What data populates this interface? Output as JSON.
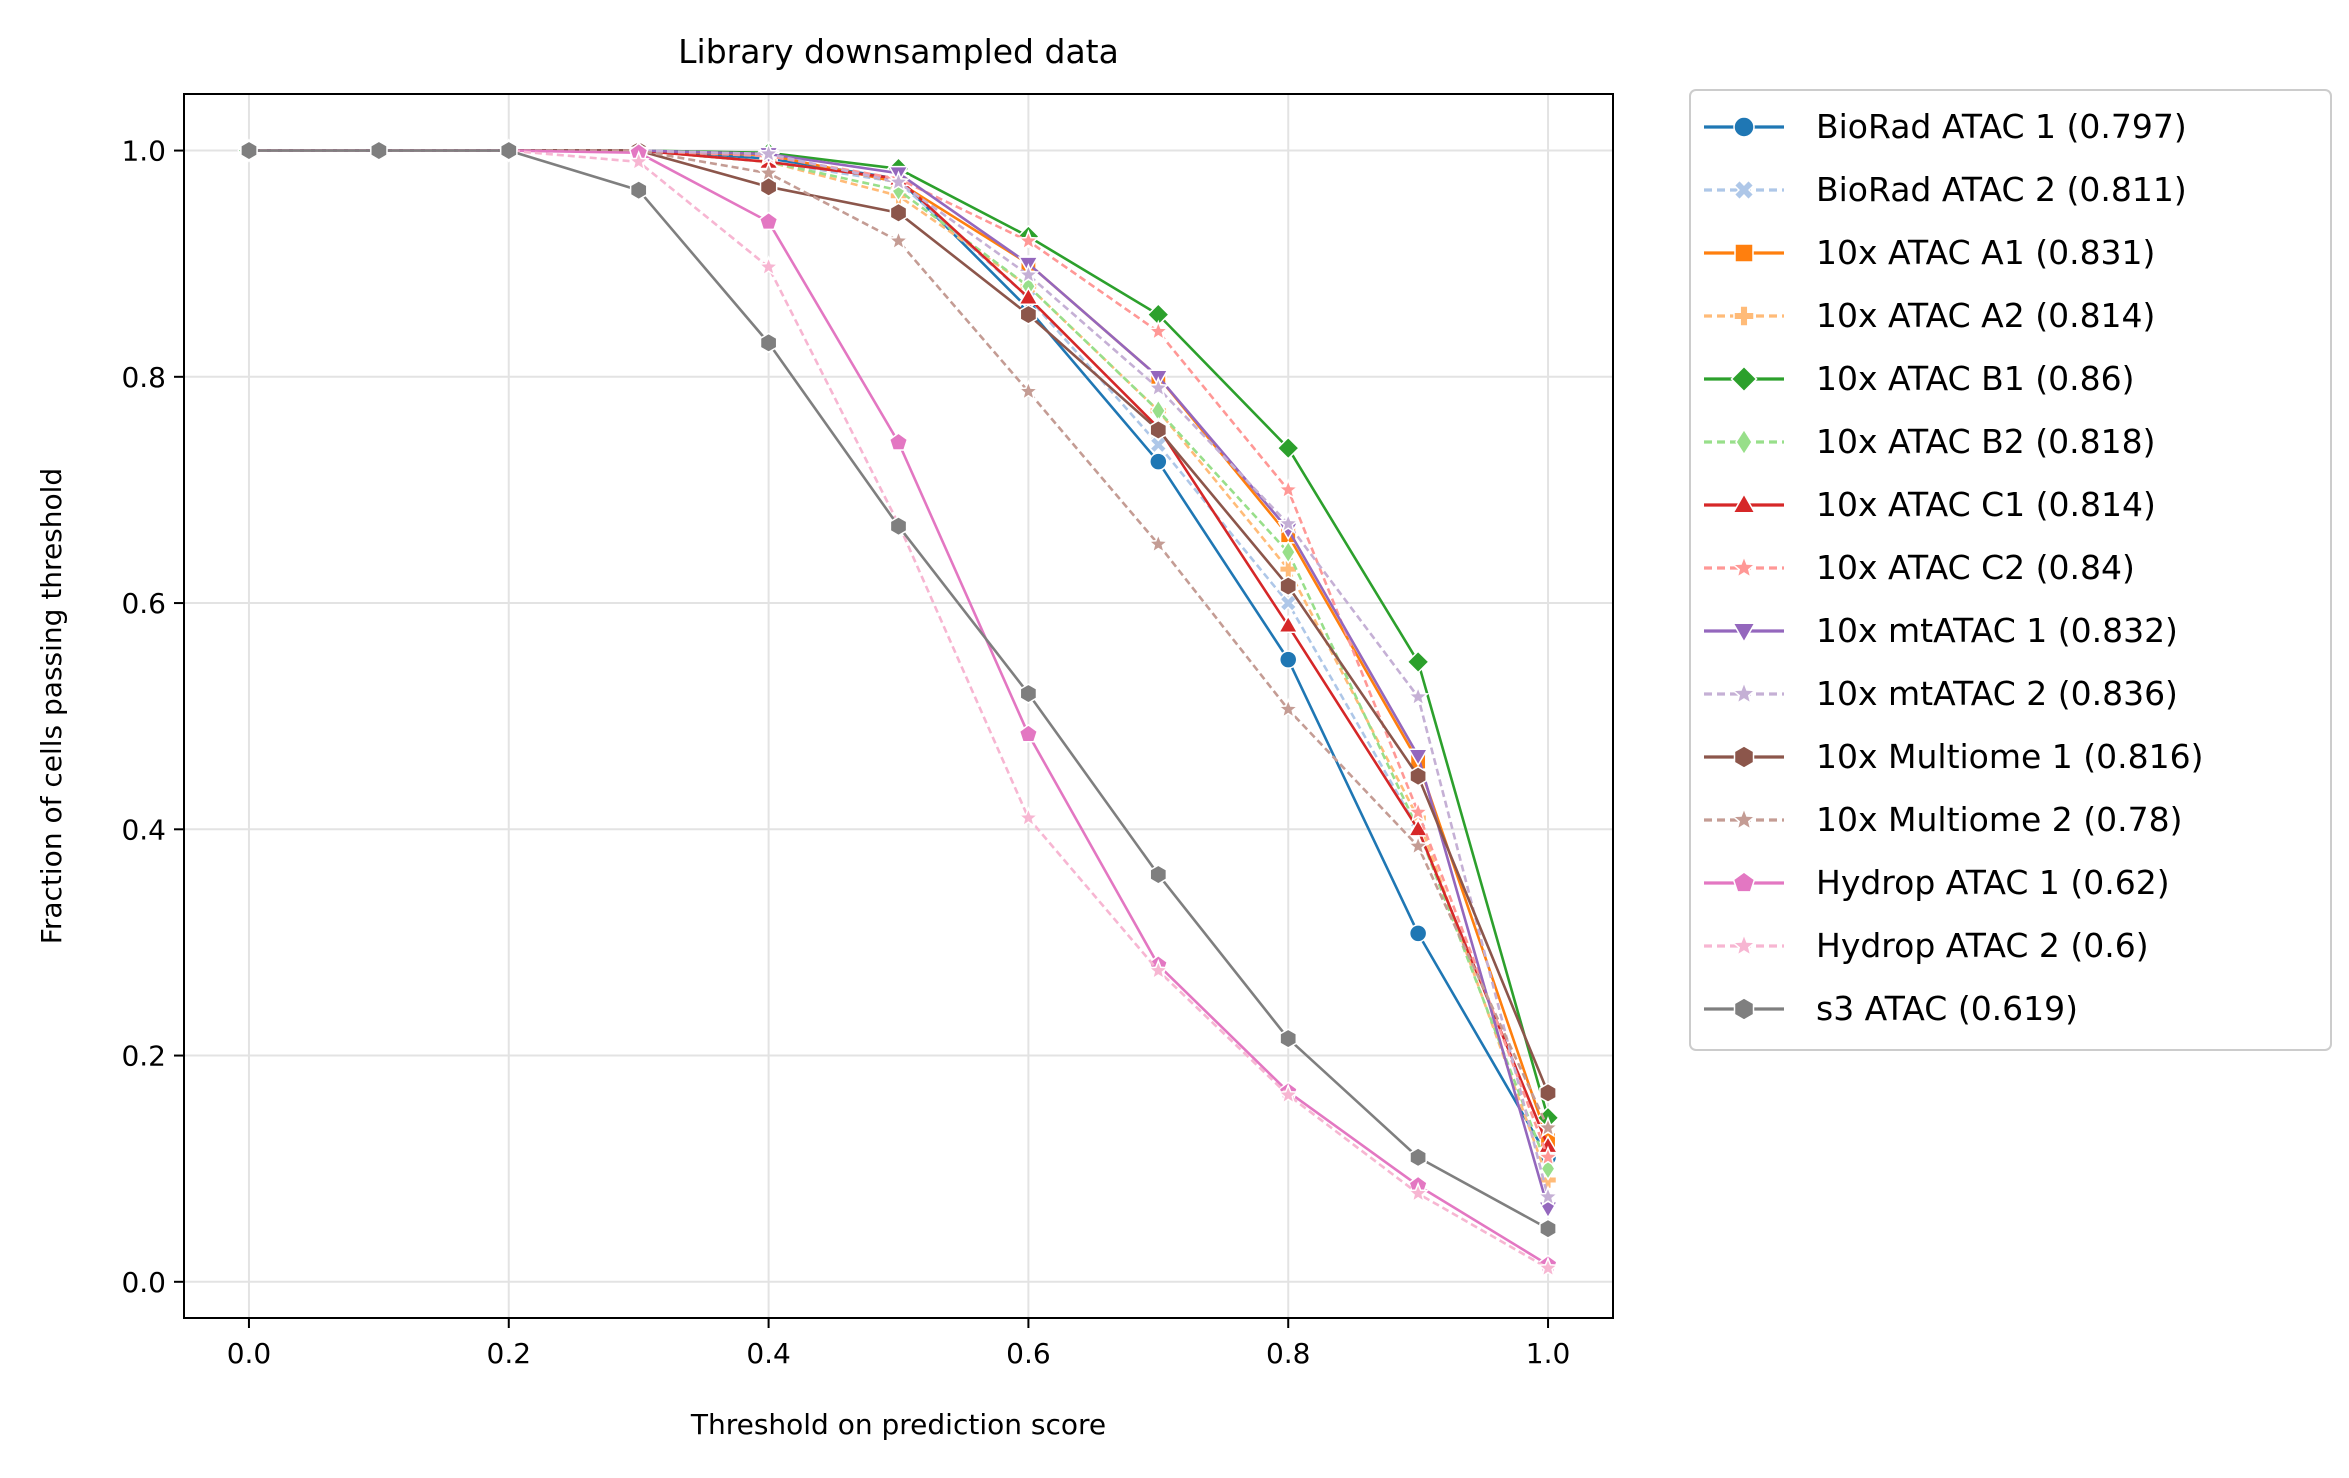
{
  "chart_data": {
    "type": "line",
    "title": "Library downsampled data",
    "xlabel": "Threshold on prediction score",
    "ylabel": "Fraction of cells passing threshold",
    "xlim": [
      -0.05,
      1.05
    ],
    "ylim": [
      -0.032,
      1.05
    ],
    "x_ticks": [
      "0.0",
      "0.2",
      "0.4",
      "0.6",
      "0.8",
      "1.0"
    ],
    "y_ticks": [
      "0.0",
      "0.2",
      "0.4",
      "0.6",
      "0.8",
      "1.0"
    ],
    "grid": true,
    "legend_position": "outside-right",
    "x": [
      0.0,
      0.1,
      0.2,
      0.3,
      0.4,
      0.5,
      0.6,
      0.7,
      0.8,
      0.9,
      1.0
    ],
    "series": [
      {
        "name": "BioRad ATAC 1 (0.797)",
        "color": "#1f77b4",
        "dashed": false,
        "marker": "circle",
        "values": [
          1.0,
          1.0,
          1.0,
          1.0,
          0.993,
          0.975,
          0.86,
          0.725,
          0.55,
          0.308,
          0.11
        ]
      },
      {
        "name": "BioRad ATAC 2 (0.811)",
        "color": "#aec7e8",
        "dashed": true,
        "marker": "x",
        "values": [
          1.0,
          1.0,
          1.0,
          1.0,
          0.99,
          0.972,
          0.87,
          0.74,
          0.6,
          0.4,
          0.12
        ]
      },
      {
        "name": "10x ATAC A1 (0.831)",
        "color": "#ff7f0e",
        "dashed": false,
        "marker": "square",
        "values": [
          1.0,
          1.0,
          1.0,
          1.0,
          0.996,
          0.972,
          0.9,
          0.8,
          0.66,
          0.46,
          0.125
        ]
      },
      {
        "name": "10x ATAC A2 (0.814)",
        "color": "#ffbb78",
        "dashed": true,
        "marker": "plus",
        "values": [
          1.0,
          1.0,
          1.0,
          1.0,
          0.99,
          0.96,
          0.88,
          0.77,
          0.63,
          0.41,
          0.09
        ]
      },
      {
        "name": "10x ATAC B1 (0.86)",
        "color": "#2ca02c",
        "dashed": false,
        "marker": "diamond",
        "values": [
          1.0,
          1.0,
          1.0,
          1.0,
          0.998,
          0.984,
          0.924,
          0.855,
          0.737,
          0.548,
          0.145
        ]
      },
      {
        "name": "10x ATAC B2 (0.818)",
        "color": "#98df8a",
        "dashed": true,
        "marker": "thin_diamond",
        "values": [
          1.0,
          1.0,
          1.0,
          1.0,
          0.99,
          0.965,
          0.88,
          0.77,
          0.645,
          0.4,
          0.1
        ]
      },
      {
        "name": "10x ATAC C1 (0.814)",
        "color": "#d62728",
        "dashed": false,
        "marker": "triangle_up",
        "values": [
          1.0,
          1.0,
          1.0,
          1.0,
          0.99,
          0.975,
          0.87,
          0.755,
          0.58,
          0.4,
          0.12
        ]
      },
      {
        "name": "10x ATAC C2 (0.84)",
        "color": "#ff9896",
        "dashed": true,
        "marker": "star",
        "values": [
          1.0,
          1.0,
          1.0,
          1.0,
          0.995,
          0.975,
          0.92,
          0.84,
          0.7,
          0.415,
          0.11
        ]
      },
      {
        "name": "10x mtATAC 1 (0.832)",
        "color": "#9467bd",
        "dashed": false,
        "marker": "triangle_down",
        "values": [
          1.0,
          1.0,
          1.0,
          1.0,
          0.997,
          0.98,
          0.9,
          0.8,
          0.665,
          0.465,
          0.065
        ]
      },
      {
        "name": "10x mtATAC 2 (0.836)",
        "color": "#c5b0d5",
        "dashed": true,
        "marker": "star",
        "values": [
          1.0,
          1.0,
          1.0,
          1.0,
          0.997,
          0.972,
          0.89,
          0.79,
          0.67,
          0.517,
          0.075
        ]
      },
      {
        "name": "10x Multiome 1 (0.816)",
        "color": "#8c564b",
        "dashed": false,
        "marker": "hexagon",
        "values": [
          1.0,
          1.0,
          1.0,
          1.0,
          0.968,
          0.945,
          0.855,
          0.753,
          0.615,
          0.447,
          0.167
        ]
      },
      {
        "name": "10x Multiome 2 (0.78)",
        "color": "#c49c94",
        "dashed": true,
        "marker": "star",
        "values": [
          1.0,
          1.0,
          1.0,
          1.0,
          0.98,
          0.92,
          0.787,
          0.652,
          0.506,
          0.385,
          0.136
        ]
      },
      {
        "name": "Hydrop ATAC 1 (0.62)",
        "color": "#e377c2",
        "dashed": false,
        "marker": "pentagon",
        "values": [
          1.0,
          1.0,
          1.0,
          0.998,
          0.937,
          0.742,
          0.484,
          0.28,
          0.168,
          0.085,
          0.015
        ]
      },
      {
        "name": "Hydrop ATAC 2 (0.6)",
        "color": "#f7b6d2",
        "dashed": true,
        "marker": "star",
        "values": [
          1.0,
          1.0,
          1.0,
          0.99,
          0.897,
          0.67,
          0.41,
          0.275,
          0.165,
          0.078,
          0.012
        ]
      },
      {
        "name": "s3 ATAC (0.619)",
        "color": "#7f7f7f",
        "dashed": false,
        "marker": "hexagon",
        "values": [
          1.0,
          1.0,
          1.0,
          0.965,
          0.83,
          0.668,
          0.52,
          0.36,
          0.215,
          0.11,
          0.047
        ]
      }
    ]
  }
}
